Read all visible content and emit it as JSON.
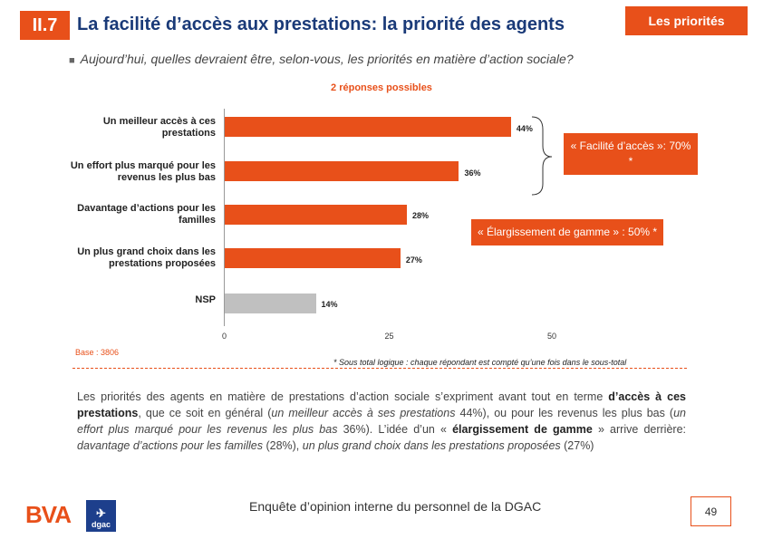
{
  "header": {
    "section": "II.7",
    "title": "La facilité d’accès aux prestations: la priorité des agents",
    "tag": "Les priorités"
  },
  "question": "Aujourd’hui, quelles devraient être, selon-vous, les priorités en matière d’action sociale?",
  "subnote": "2 réponses possibles",
  "chart_data": {
    "type": "bar",
    "orientation": "horizontal",
    "categories": [
      "Un meilleur accès à ces prestations",
      "Un effort plus marqué pour les revenus les plus bas",
      "Davantage d’actions pour les familles",
      "Un plus grand choix dans les prestations proposées",
      "NSP"
    ],
    "values": [
      44,
      36,
      28,
      27,
      14
    ],
    "value_labels": [
      "44%",
      "36%",
      "28%",
      "27%",
      "14%"
    ],
    "xlim": [
      0,
      50
    ],
    "ticks": [
      "0",
      "25",
      "50"
    ],
    "colors": [
      "#e8501a",
      "#e8501a",
      "#e8501a",
      "#e8501a",
      "#c0c0c0"
    ]
  },
  "callouts": {
    "facilite": "« Facilité d’accès »: 70% *",
    "elargissement": "« Élargissement de gamme » : 50% *"
  },
  "base": "Base : 3806",
  "sous_total_note": "* Sous total logique : chaque répondant est compté qu’une fois dans le sous-total",
  "body": {
    "p1": "Les priorités des agents en matière de prestations d’action sociale s’expriment avant tout en terme ",
    "b1": "d’accès à ces prestations",
    "p2": ", que ce soit en général (",
    "i1": "un meilleur accès à ses prestations",
    "p3": " 44%), ou pour les revenus les plus bas (",
    "i2": "un effort plus marqué pour les revenus les plus bas",
    "p4": " 36%). L’idée d’un « ",
    "b2": "élargissement de gamme",
    "p5": " » arrive derrière: ",
    "i3": "davantage d’actions pour les familles",
    "p6": " (28%), ",
    "i4": "un plus grand choix dans les prestations proposées",
    "p7": " (27%)"
  },
  "footer": {
    "brand": "BVA",
    "partner": "dgac",
    "text": "Enquête d’opinion interne du personnel de la DGAC",
    "page": "49"
  },
  "colors": {
    "accent": "#e8501a",
    "title": "#1a3a78",
    "nsp": "#c0c0c0"
  }
}
